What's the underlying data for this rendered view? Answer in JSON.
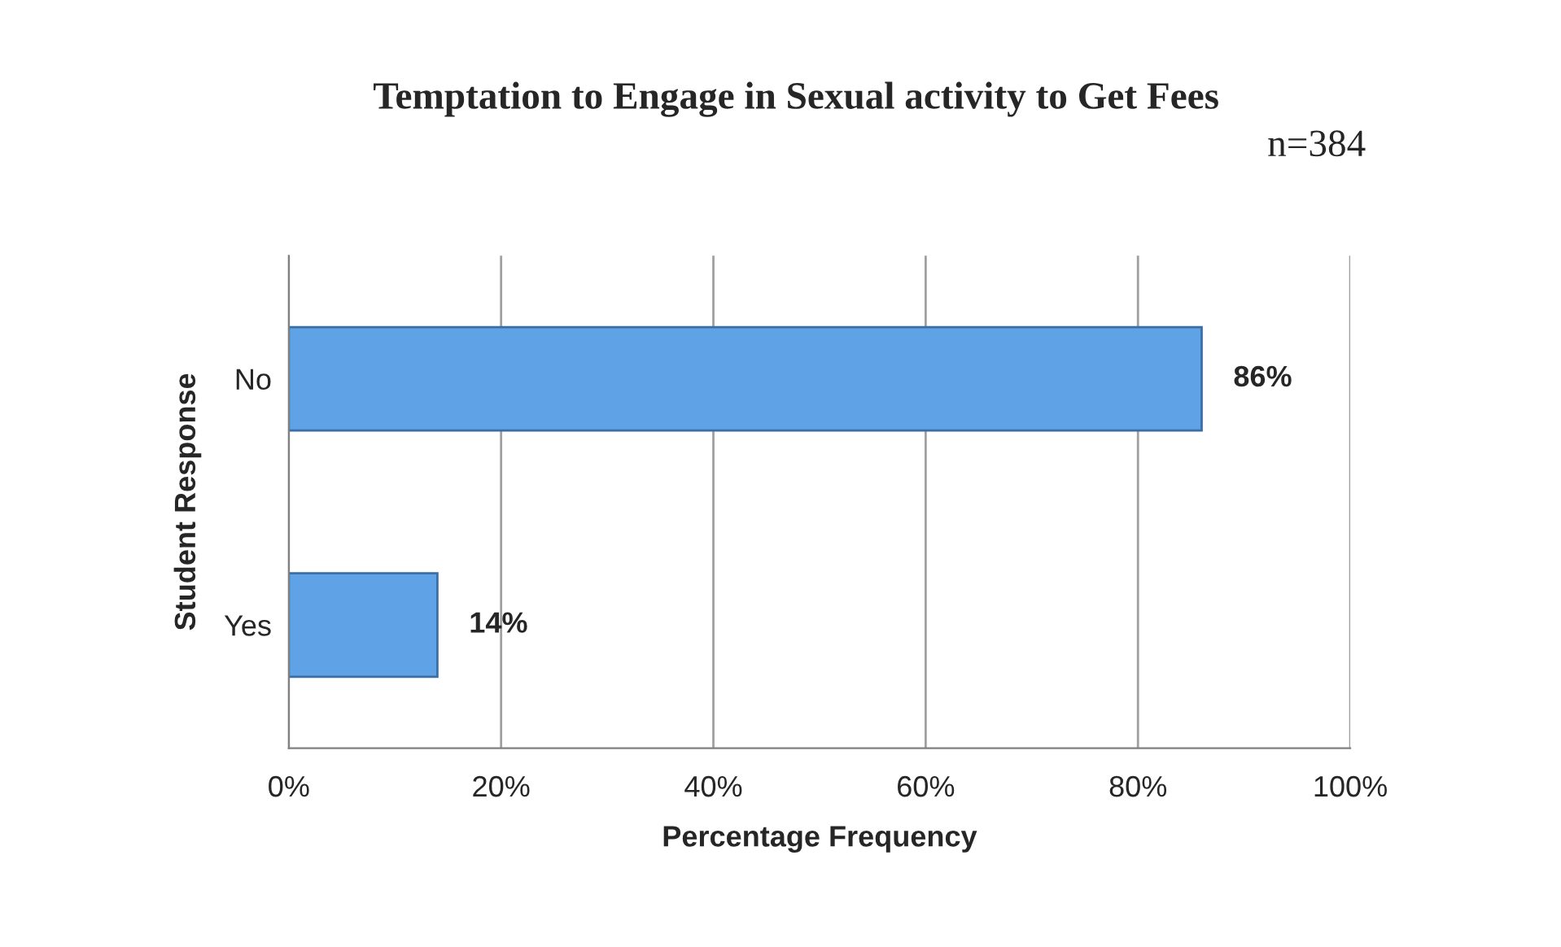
{
  "chart_data": {
    "type": "bar",
    "orientation": "horizontal",
    "title": "Temptation to Engage in Sexual activity to Get Fees",
    "annotations": [
      "n=384"
    ],
    "xlabel": "Percentage Frequency",
    "ylabel": "Student Response",
    "categories": [
      "No",
      "Yes"
    ],
    "values": [
      86,
      14
    ],
    "color": "#5fa3e6",
    "value_labels": [
      "86%",
      "14%"
    ],
    "xlim": [
      0,
      100
    ],
    "xticks": [
      {
        "value": 0,
        "label": "0%"
      },
      {
        "value": 20,
        "label": "20%"
      },
      {
        "value": 40,
        "label": "40%"
      },
      {
        "value": 60,
        "label": "60%"
      },
      {
        "value": 80,
        "label": "80%"
      },
      {
        "value": 100,
        "label": "100%"
      }
    ],
    "grid": "x",
    "legend": false
  }
}
